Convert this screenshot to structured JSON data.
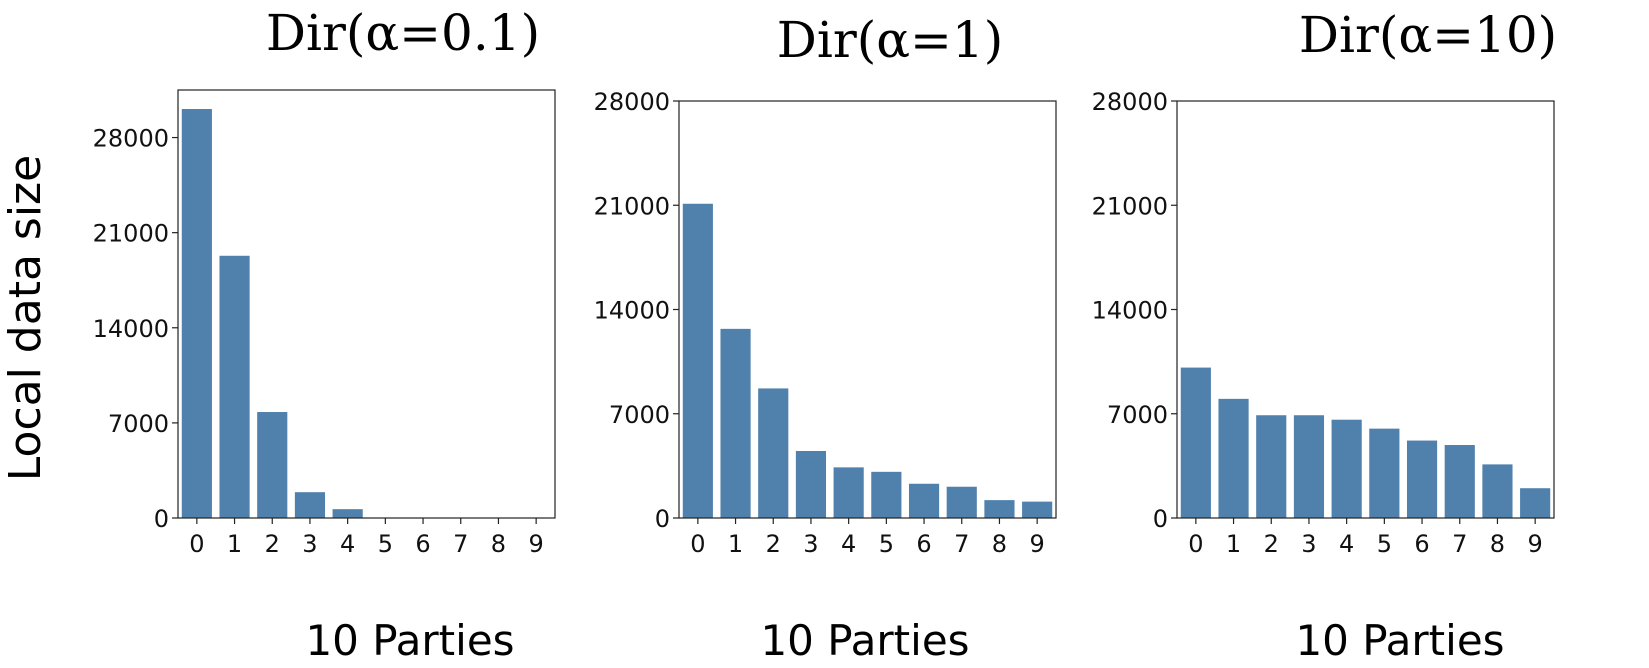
{
  "figure": {
    "ylabel": "Local data size"
  },
  "chart_data": [
    {
      "type": "bar",
      "title": "Dir(α=0.1)",
      "xlabel": "10 Parties",
      "ylabel": "Local data size",
      "categories": [
        "0",
        "1",
        "2",
        "3",
        "4",
        "5",
        "6",
        "7",
        "8",
        "9"
      ],
      "values": [
        30100,
        19300,
        7800,
        1900,
        650,
        0,
        0,
        0,
        0,
        0
      ],
      "ylim": [
        0,
        31500
      ],
      "yticks": [
        0,
        7000,
        14000,
        21000,
        28000
      ],
      "bar_color": "#5081ac",
      "grid": false,
      "legend": false
    },
    {
      "type": "bar",
      "title": "Dir(α=1)",
      "xlabel": "10 Parties",
      "ylabel": "",
      "categories": [
        "0",
        "1",
        "2",
        "3",
        "4",
        "5",
        "6",
        "7",
        "8",
        "9"
      ],
      "values": [
        21100,
        12700,
        8700,
        4500,
        3400,
        3100,
        2300,
        2100,
        1200,
        1100
      ],
      "ylim": [
        0,
        28000
      ],
      "yticks": [
        0,
        7000,
        14000,
        21000,
        28000
      ],
      "bar_color": "#5081ac",
      "grid": false,
      "legend": false
    },
    {
      "type": "bar",
      "title": "Dir(α=10)",
      "xlabel": "10 Parties",
      "ylabel": "",
      "categories": [
        "0",
        "1",
        "2",
        "3",
        "4",
        "5",
        "6",
        "7",
        "8",
        "9"
      ],
      "values": [
        10100,
        8000,
        6900,
        6900,
        6600,
        6000,
        5200,
        4900,
        3600,
        2000
      ],
      "ylim": [
        0,
        28000
      ],
      "yticks": [
        0,
        7000,
        14000,
        21000,
        28000
      ],
      "bar_color": "#5081ac",
      "grid": false,
      "legend": false
    }
  ]
}
